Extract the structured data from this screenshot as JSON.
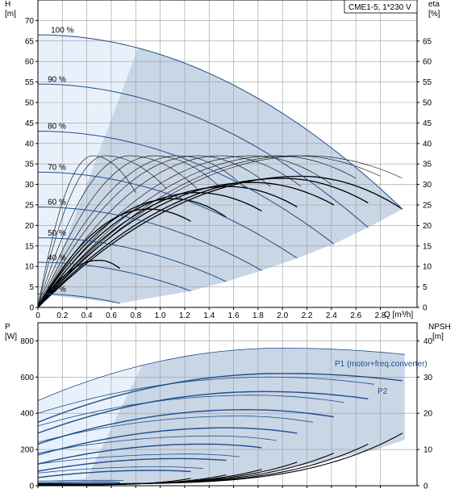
{
  "chart_data": [
    {
      "type": "line",
      "legend_box": "CME1-5, 1*230 V",
      "xlabel": "Q [m³/h]",
      "ylabel_left": [
        "H",
        "[m]"
      ],
      "ylabel_right": [
        "eta",
        "[%]"
      ],
      "xlim": [
        0,
        3.1
      ],
      "ylim_left": [
        0,
        75
      ],
      "ylim_right": [
        0,
        75
      ],
      "grid": true,
      "x_ticks": [
        "0",
        "0.2",
        "0.4",
        "0.6",
        "0.8",
        "1.0",
        "1.2",
        "1.4",
        "1.6",
        "1.8",
        "2.0",
        "2.2",
        "2.4",
        "2.6",
        "2.8"
      ],
      "x_tick_values": [
        0,
        0.2,
        0.4,
        0.6,
        0.8,
        1.0,
        1.2,
        1.4,
        1.6,
        1.8,
        2.0,
        2.2,
        2.4,
        2.6,
        2.8
      ],
      "y_left_ticks": [
        "0",
        "5",
        "10",
        "15",
        "20",
        "25",
        "30",
        "35",
        "40",
        "45",
        "50",
        "55",
        "60",
        "65",
        "70"
      ],
      "y_left_tick_values": [
        0,
        5,
        10,
        15,
        20,
        25,
        30,
        35,
        40,
        45,
        50,
        55,
        60,
        65,
        70
      ],
      "y_right_ticks": [
        "0",
        "5",
        "10",
        "15",
        "20",
        "25",
        "30",
        "35",
        "40",
        "45",
        "50",
        "55",
        "60",
        "65"
      ],
      "y_right_tick_values": [
        0,
        5,
        10,
        15,
        20,
        25,
        30,
        35,
        40,
        45,
        50,
        55,
        60,
        65
      ],
      "colors": {
        "curve": "#1f4e8c",
        "area": "#c9d6e6",
        "area_light": "#e8f1fb",
        "eta": "#000000"
      },
      "head_curves": [
        {
          "label": "100 %",
          "shutoff_head": 66.5,
          "q_max": 2.98,
          "h_end": 24
        },
        {
          "label": "90 %",
          "shutoff_head": 54.5,
          "q_max": 2.7,
          "h_end": 19.5
        },
        {
          "label": "80 %",
          "shutoff_head": 43,
          "q_max": 2.42,
          "h_end": 15.5
        },
        {
          "label": "70 %",
          "shutoff_head": 33,
          "q_max": 2.12,
          "h_end": 12
        },
        {
          "label": "60 %",
          "shutoff_head": 24.5,
          "q_max": 1.83,
          "h_end": 9
        },
        {
          "label": "50 %",
          "shutoff_head": 17,
          "q_max": 1.54,
          "h_end": 6.3
        },
        {
          "label": "40 %",
          "shutoff_head": 11,
          "q_max": 1.25,
          "h_end": 4
        },
        {
          "label": "31 %",
          "shutoff_head": 3.3,
          "q_max": 0.67,
          "h_end": 1
        }
      ],
      "eta_curves": [
        {
          "q_peak": 2.15,
          "eta_peak": 32,
          "q_end": 2.98,
          "eta_end": 24
        },
        {
          "q_peak": 2.0,
          "eta_peak": 31.5,
          "q_end": 2.7,
          "eta_end": 25.5
        },
        {
          "q_peak": 1.75,
          "eta_peak": 30.5,
          "q_end": 2.42,
          "eta_end": 25
        },
        {
          "q_peak": 1.55,
          "eta_peak": 29.5,
          "q_end": 2.12,
          "eta_end": 24.5
        },
        {
          "q_peak": 1.3,
          "eta_peak": 28,
          "q_end": 1.83,
          "eta_end": 23.5
        },
        {
          "q_peak": 1.1,
          "eta_peak": 26.5,
          "q_end": 1.54,
          "eta_end": 22
        },
        {
          "q_peak": 0.9,
          "eta_peak": 24,
          "q_end": 1.25,
          "eta_end": 21
        },
        {
          "q_peak": 0.5,
          "eta_peak": 11.5,
          "q_end": 0.67,
          "eta_end": 9.5
        }
      ],
      "eta_thin_curves": [
        {
          "q_peak": 2.2,
          "eta_peak": 37,
          "q_end": 2.98,
          "eta_end": 31.5
        },
        {
          "q_peak": 2.1,
          "eta_peak": 37,
          "q_end": 2.8,
          "eta_end": 32
        },
        {
          "q_peak": 1.95,
          "eta_peak": 37,
          "q_end": 2.6,
          "eta_end": 31.5
        },
        {
          "q_peak": 1.75,
          "eta_peak": 37,
          "q_end": 2.4,
          "eta_end": 30
        },
        {
          "q_peak": 1.5,
          "eta_peak": 37,
          "q_end": 2.15,
          "eta_end": 29.5
        },
        {
          "q_peak": 1.3,
          "eta_peak": 37,
          "q_end": 1.9,
          "eta_end": 29.5
        },
        {
          "q_peak": 1.15,
          "eta_peak": 37,
          "q_end": 1.7,
          "eta_end": 29
        },
        {
          "q_peak": 0.95,
          "eta_peak": 37,
          "q_end": 1.5,
          "eta_end": 29
        },
        {
          "q_peak": 0.75,
          "eta_peak": 37,
          "q_end": 1.3,
          "eta_end": 29
        },
        {
          "q_peak": 0.55,
          "eta_peak": 37,
          "q_end": 1.05,
          "eta_end": 29
        },
        {
          "q_peak": 0.45,
          "eta_peak": 37,
          "q_end": 0.8,
          "eta_end": 28
        }
      ]
    },
    {
      "type": "line",
      "xlabel": "",
      "ylabel_left": [
        "P",
        "[W]"
      ],
      "ylabel_right": [
        "NPSH",
        "[m]"
      ],
      "xlim": [
        0,
        3.1
      ],
      "ylim_left": [
        0,
        900
      ],
      "ylim_right": [
        0,
        45
      ],
      "grid": true,
      "y_left_ticks": [
        "0",
        "200",
        "400",
        "600",
        "800"
      ],
      "y_left_tick_values": [
        0,
        200,
        400,
        600,
        800
      ],
      "y_right_ticks": [
        "0",
        "10",
        "20",
        "30",
        "40"
      ],
      "y_right_tick_values": [
        0,
        10,
        20,
        30,
        40
      ],
      "series_labels": [
        "P1 (motor+freq.converter)",
        "P2"
      ],
      "p1_curves": [
        {
          "p_start": 470,
          "q_peak": 2.0,
          "p_peak": 760,
          "q_end": 3.0,
          "p_end": 725
        },
        {
          "p_start": 400,
          "q_peak": 1.9,
          "p_peak": 600,
          "q_end": 2.75,
          "p_end": 560
        },
        {
          "p_start": 330,
          "q_peak": 1.75,
          "p_peak": 500,
          "q_end": 2.5,
          "p_end": 460
        },
        {
          "p_start": 240,
          "q_peak": 1.65,
          "p_peak": 385,
          "q_end": 2.25,
          "p_end": 350
        },
        {
          "p_start": 180,
          "q_peak": 1.45,
          "p_peak": 275,
          "q_end": 1.95,
          "p_end": 250
        },
        {
          "p_start": 120,
          "q_peak": 1.25,
          "p_peak": 175,
          "q_end": 1.65,
          "p_end": 160
        },
        {
          "p_start": 70,
          "q_peak": 1.0,
          "p_peak": 105,
          "q_end": 1.35,
          "p_end": 95
        },
        {
          "p_start": 25,
          "q_peak": 0.6,
          "p_peak": 30,
          "q_end": 0.7,
          "p_end": 28
        }
      ],
      "p2_curves": [
        {
          "p_start": 350,
          "q_peak": 2.0,
          "p_peak": 620,
          "q_end": 2.98,
          "p_end": 580
        },
        {
          "p_start": 290,
          "q_peak": 1.85,
          "p_peak": 520,
          "q_end": 2.7,
          "p_end": 480
        },
        {
          "p_start": 230,
          "q_peak": 1.7,
          "p_peak": 420,
          "q_end": 2.42,
          "p_end": 380
        },
        {
          "p_start": 170,
          "q_peak": 1.55,
          "p_peak": 320,
          "q_end": 2.12,
          "p_end": 290
        },
        {
          "p_start": 120,
          "q_peak": 1.35,
          "p_peak": 230,
          "q_end": 1.83,
          "p_end": 210
        },
        {
          "p_start": 80,
          "q_peak": 1.15,
          "p_peak": 150,
          "q_end": 1.54,
          "p_end": 140
        },
        {
          "p_start": 45,
          "q_peak": 0.95,
          "p_peak": 85,
          "q_end": 1.25,
          "p_end": 78
        },
        {
          "p_start": 15,
          "q_peak": 0.55,
          "p_peak": 20,
          "q_end": 0.67,
          "p_end": 18
        }
      ],
      "npsh_curves": [
        {
          "q_end": 2.98,
          "npsh_end": 14.5,
          "npsh_start": 0.5
        },
        {
          "q_end": 2.7,
          "npsh_end": 11.5,
          "npsh_start": 0.5
        },
        {
          "q_end": 2.42,
          "npsh_end": 9,
          "npsh_start": 0.5
        },
        {
          "q_end": 2.12,
          "npsh_end": 6.5,
          "npsh_start": 0.5
        },
        {
          "q_end": 1.83,
          "npsh_end": 4.5,
          "npsh_start": 0.4
        },
        {
          "q_end": 1.54,
          "npsh_end": 3,
          "npsh_start": 0.3
        },
        {
          "q_end": 1.25,
          "npsh_end": 2,
          "npsh_start": 0.2
        },
        {
          "q_end": 0.67,
          "npsh_end": 0.6,
          "npsh_start": 0.1
        }
      ]
    }
  ]
}
